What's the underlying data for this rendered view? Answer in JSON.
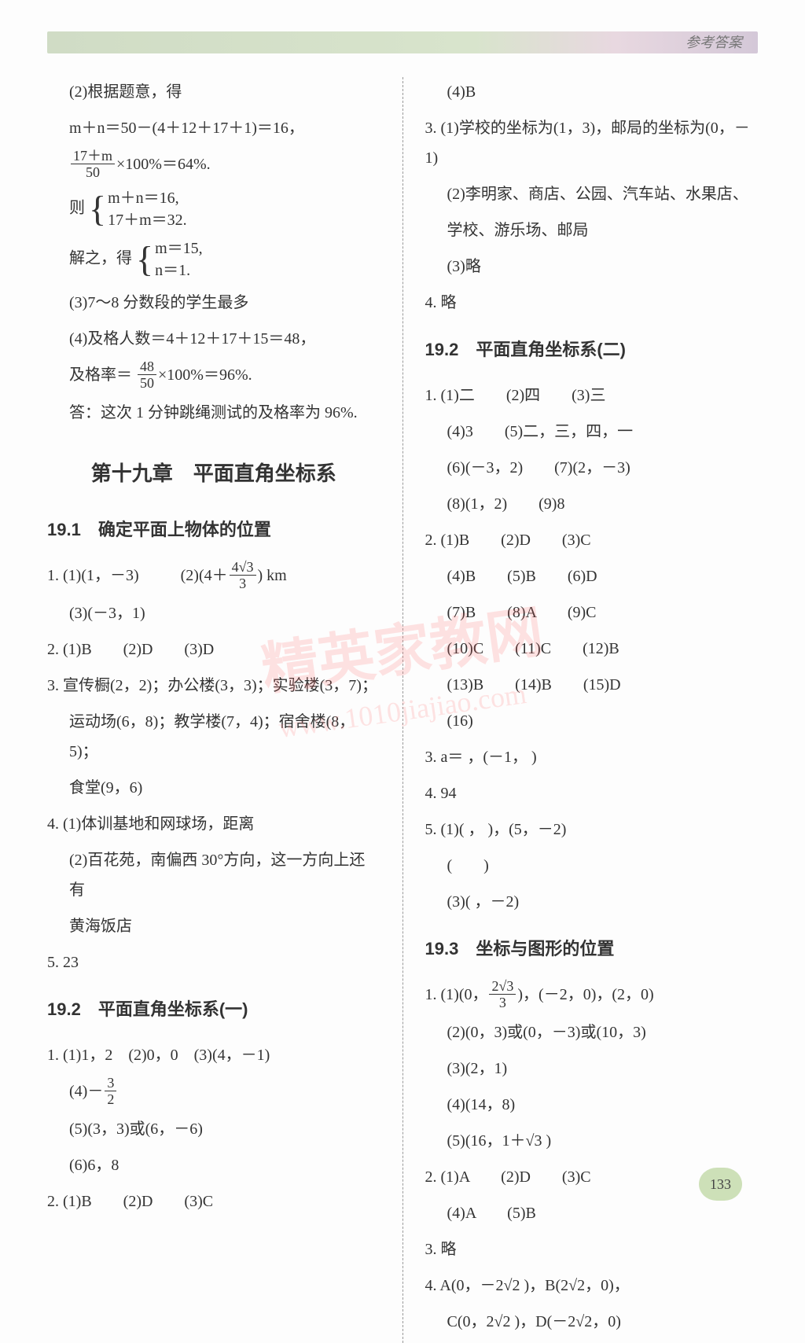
{
  "header_label": "参考答案",
  "watermark_main": "精英家教网",
  "watermark_url": "www.1010jiajiao.com",
  "page_number": "133",
  "left": {
    "l1": "(2)根据题意，得",
    "l2_a": "m＋n＝50－(4＋12＋17＋1)＝16，",
    "l3_num": "17＋m",
    "l3_den": "50",
    "l3_b": "×100%＝64%.",
    "l4_a": "则",
    "l4_s1": "m＋n＝16,",
    "l4_s2": "17＋m＝32.",
    "l5_a": "解之，得",
    "l5_s1": "m＝15,",
    "l5_s2": "n＝1.",
    "l6": "(3)7～8 分数段的学生最多",
    "l7": "(4)及格人数＝4＋12＋17＋15＝48，",
    "l8_a": "及格率＝",
    "l8_num": "48",
    "l8_den": "50",
    "l8_b": "×100%＝96%.",
    "l9": "答：这次 1 分钟跳绳测试的及格率为 96%.",
    "chapter": "第十九章　平面直角坐标系",
    "s191": "19.1　确定平面上物体的位置",
    "q1a": "1.  (1)(1，－3)",
    "q1b": "(2)(4＋",
    "q1b_num": "4√3",
    "q1b_den": "3",
    "q1c": ") km",
    "q1d": "(3)(－3，1)",
    "q2": "2.  (1)B　　(2)D　　(3)D",
    "q3a": "3.  宣传橱(2，2)；办公楼(3，3)；实验楼(3，7)；",
    "q3b": "运动场(6，8)；教学楼(7，4)；宿舍楼(8，5)；",
    "q3c": "食堂(9，6)",
    "q4a": "4.  (1)体训基地和网球场，距离",
    "q4b": "(2)百花苑，南偏西 30°方向，这一方向上还有",
    "q4c": "黄海饭店",
    "q5": "5.  23",
    "s192": "19.2　平面直角坐标系(一)",
    "r1": "1.  (1)1，2　(2)0，0　(3)(4，－1)",
    "r1b": "(4)－",
    "r1b_num": "3",
    "r1b_den": "2",
    "r1c": "(5)(3，3)或(6，－6)",
    "r1d": "(6)6，8",
    "r2": "2.  (1)B　　(2)D　　(3)C"
  },
  "right": {
    "l1": "(4)B",
    "l2": "3.  (1)学校的坐标为(1，3)，邮局的坐标为(0，－1)",
    "l3": "(2)李明家、商店、公园、汽车站、水果店、",
    "l4": "学校、游乐场、邮局",
    "l5": "(3)略",
    "l6": "4.  略",
    "s192b": "19.2　平面直角坐标系(二)",
    "q1a": "1.  (1)二　　(2)四　　(3)三",
    "q1b": "(4)3　　(5)二，三，四，一",
    "q1c": "(6)(－3，2)　　(7)(2，－3)",
    "q1d": "(8)(1，2)　　(9)8",
    "q2a": "2.  (1)B　　(2)D　　(3)C",
    "q2b": "(4)B　　(5)B　　(6)D",
    "q2c": "(7)B　　(8)A　　(9)C",
    "q2d": "(10)C　　(11)C　　(12)B",
    "q2e": "(13)B　　(14)B　　(15)D",
    "q2f": "(16) ",
    "q3": "3.  a＝ ，(－1，  )",
    "q4": "4.  94",
    "q5a": "5.  (1)(  ，  )，(5，－2)",
    "q5b": "(　　)",
    "q5c": "(3)(  ，－2)",
    "s193": "19.3　坐标与图形的位置",
    "r1a": "1.  (1)(0，",
    "r1a_num": "2√3",
    "r1a_den": "3",
    "r1a_b": ")，(－2，0)，(2，0)",
    "r1b": "(2)(0，3)或(0，－3)或(10，3)",
    "r1c": "(3)(2，1)",
    "r1d": "(4)(14，8)",
    "r1e": "(5)(16，1＋√3 )",
    "r2": "2.  (1)A　　(2)D　　(3)C",
    "r2b": "(4)A　　(5)B",
    "r3": "3.  略",
    "r4a": "4.  A(0，－2√2 )，B(2√2，0)，",
    "r4b": "C(0，2√2 )，D(－2√2，0)"
  }
}
